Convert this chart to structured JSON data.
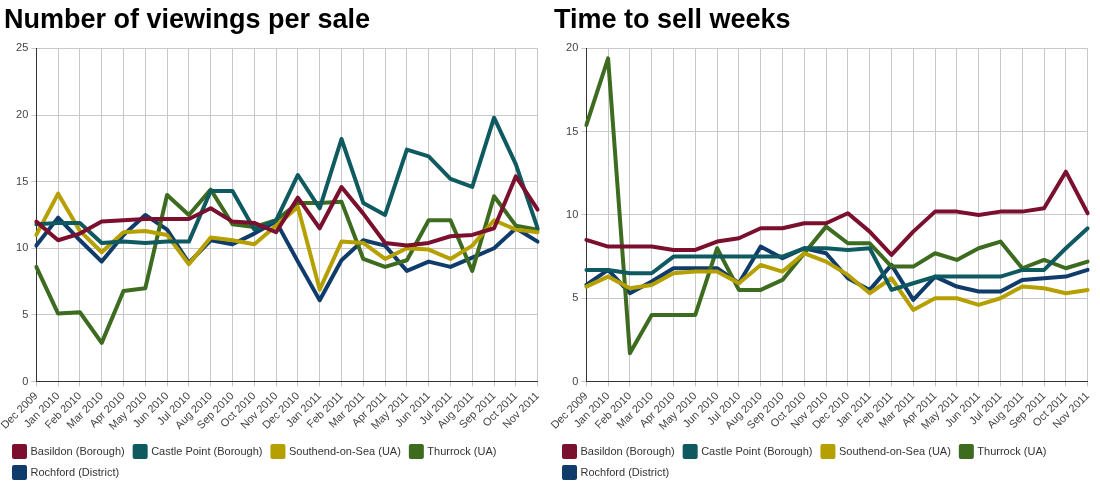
{
  "chart_data": [
    {
      "type": "line",
      "title": "Number of viewings per sale",
      "categories": [
        "Dec 2009",
        "Jan 2010",
        "Feb 2010",
        "Mar 2010",
        "Apr 2010",
        "May 2010",
        "Jun 2010",
        "Jul 2010",
        "Aug 2010",
        "Sep 2010",
        "Oct 2010",
        "Nov 2010",
        "Dec 2010",
        "Jan 2011",
        "Feb 2011",
        "Mar 2011",
        "Apr 2011",
        "May 2011",
        "Jun 2011",
        "Jul 2011",
        "Aug 2011",
        "Sep 2011",
        "Oct 2011",
        "Nov 2011"
      ],
      "ylim": [
        0,
        25
      ],
      "yticks": [
        0,
        5,
        10,
        15,
        20,
        25
      ],
      "grid": true,
      "legend": "bottom",
      "marker": "none",
      "line_style": "solid",
      "series": [
        {
          "name": "Basildon (Borough)",
          "color": "#7a0f2e",
          "values": [
            12.0,
            10.6,
            11.1,
            12.0,
            12.1,
            12.2,
            12.2,
            12.2,
            13.0,
            12.0,
            11.9,
            11.2,
            13.8,
            11.5,
            14.6,
            12.6,
            10.4,
            10.2,
            10.4,
            10.9,
            11.0,
            11.5,
            15.4,
            12.9
          ]
        },
        {
          "name": "Castle Point (Borough)",
          "color": "#0e5a60",
          "values": [
            11.8,
            11.9,
            11.9,
            10.4,
            10.5,
            10.4,
            10.5,
            10.5,
            14.3,
            14.3,
            11.4,
            12.1,
            15.5,
            13.0,
            18.2,
            13.4,
            12.5,
            17.4,
            16.9,
            15.2,
            14.6,
            19.8,
            16.3,
            11.5
          ]
        },
        {
          "name": "Southend-on-Sea (UA)",
          "color": "#b5a000",
          "values": [
            11.0,
            14.1,
            11.3,
            9.7,
            11.2,
            11.3,
            11.0,
            8.8,
            10.8,
            10.6,
            10.3,
            11.7,
            13.1,
            6.9,
            10.5,
            10.4,
            9.2,
            10.0,
            9.9,
            9.2,
            10.2,
            12.1,
            11.4,
            11.2
          ]
        },
        {
          "name": "Thurrock (UA)",
          "color": "#3d6b1f",
          "values": [
            8.6,
            5.1,
            5.2,
            2.9,
            6.8,
            7.0,
            14.0,
            12.5,
            14.4,
            11.8,
            11.6,
            12.1,
            13.4,
            13.4,
            13.5,
            9.2,
            8.6,
            9.1,
            12.1,
            12.1,
            8.3,
            13.9,
            11.7,
            11.4
          ]
        },
        {
          "name": "Rochford (District)",
          "color": "#0f3c6b",
          "values": [
            10.2,
            12.3,
            10.6,
            9.0,
            11.0,
            12.5,
            11.4,
            8.9,
            10.6,
            10.3,
            11.1,
            12.0,
            9.0,
            6.1,
            9.1,
            10.6,
            10.2,
            8.3,
            9.0,
            8.6,
            9.3,
            10.0,
            11.5,
            10.5
          ]
        }
      ]
    },
    {
      "type": "line",
      "title": "Time to sell weeks",
      "categories": [
        "Dec 2009",
        "Jan 2010",
        "Feb 2010",
        "Mar 2010",
        "Apr 2010",
        "May 2010",
        "Jun 2010",
        "Jul 2010",
        "Aug 2010",
        "Sep 2010",
        "Oct 2010",
        "Nov 2010",
        "Dec 2010",
        "Jan 2011",
        "Feb 2011",
        "Mar 2011",
        "Apr 2011",
        "May 2011",
        "Jun 2011",
        "Jul 2011",
        "Aug 2011",
        "Sep 2011",
        "Oct 2011",
        "Nov 2011"
      ],
      "ylim": [
        0,
        20
      ],
      "yticks": [
        0,
        5,
        10,
        15,
        20
      ],
      "grid": true,
      "legend": "bottom",
      "marker": "none",
      "line_style": "solid",
      "series": [
        {
          "name": "Basildon (Borough)",
          "color": "#7a0f2e",
          "values": [
            8.5,
            8.1,
            8.1,
            8.1,
            7.9,
            7.9,
            8.4,
            8.6,
            9.2,
            9.2,
            9.5,
            9.5,
            10.1,
            9.0,
            7.6,
            9.0,
            10.2,
            10.2,
            10.0,
            10.2,
            10.2,
            10.4,
            12.6,
            10.1
          ]
        },
        {
          "name": "Castle Point (Borough)",
          "color": "#0e5a60",
          "values": [
            6.7,
            6.7,
            6.5,
            6.5,
            7.5,
            7.5,
            7.5,
            7.5,
            7.5,
            7.5,
            8.0,
            8.0,
            7.9,
            8.0,
            5.5,
            5.9,
            6.3,
            6.3,
            6.3,
            6.3,
            6.7,
            6.7,
            8.0,
            9.2
          ]
        },
        {
          "name": "Southend-on-Sea (UA)",
          "color": "#b5a000",
          "values": [
            5.7,
            6.3,
            5.6,
            5.8,
            6.5,
            6.6,
            6.6,
            5.9,
            7.0,
            6.6,
            7.7,
            7.2,
            6.4,
            5.3,
            6.2,
            4.3,
            5.0,
            5.0,
            4.6,
            5.0,
            5.7,
            5.6,
            5.3,
            5.5
          ]
        },
        {
          "name": "Thurrock (UA)",
          "color": "#3d6b1f",
          "values": [
            15.4,
            19.4,
            1.7,
            4.0,
            4.0,
            4.0,
            8.0,
            5.5,
            5.5,
            6.1,
            7.7,
            9.3,
            8.3,
            8.3,
            6.9,
            6.9,
            7.7,
            7.3,
            8.0,
            8.4,
            6.8,
            7.3,
            6.8,
            7.2
          ]
        },
        {
          "name": "Rochford (District)",
          "color": "#0f3c6b",
          "values": [
            5.8,
            6.7,
            5.3,
            6.0,
            6.8,
            6.8,
            6.8,
            5.9,
            8.1,
            7.4,
            8.0,
            7.7,
            6.2,
            5.5,
            7.0,
            4.9,
            6.3,
            5.7,
            5.4,
            5.4,
            6.1,
            6.2,
            6.3,
            6.7
          ]
        }
      ]
    }
  ]
}
